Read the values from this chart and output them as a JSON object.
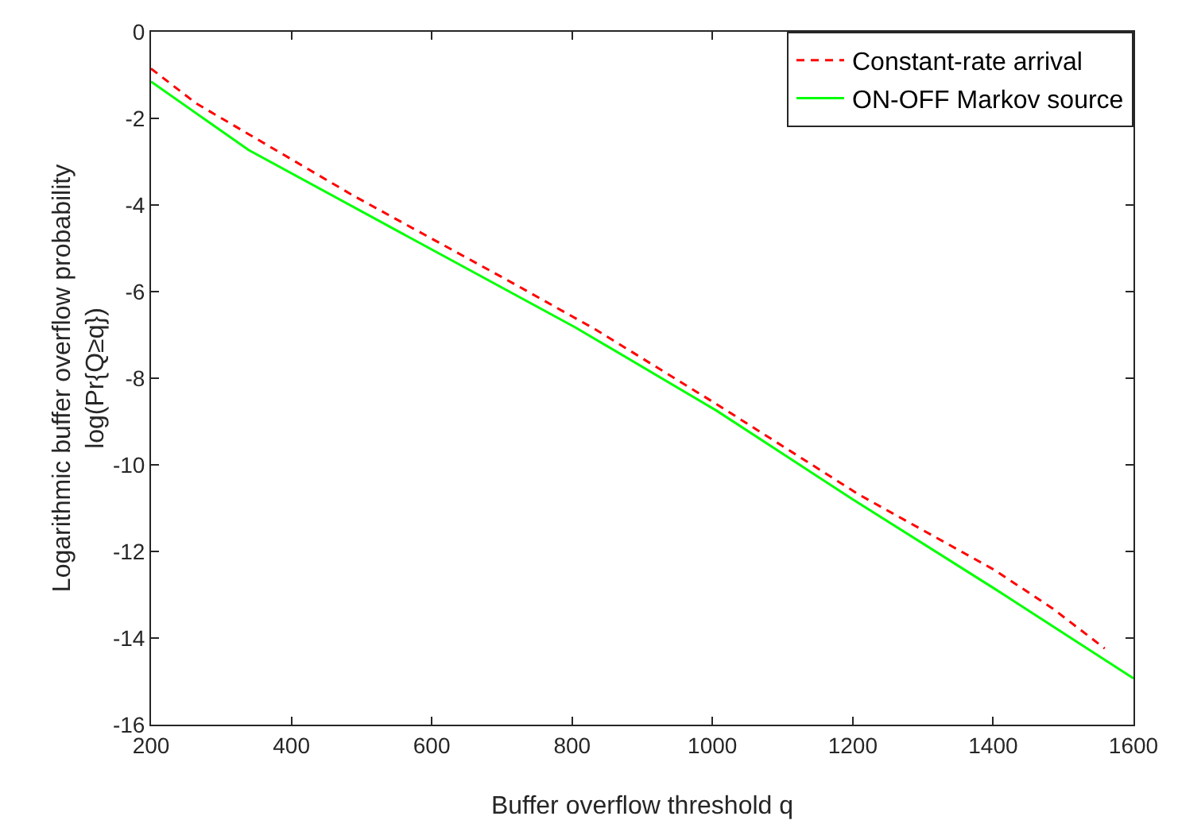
{
  "chart_data": {
    "type": "line",
    "xlabel": "Buffer overflow threshold q",
    "ylabel": "Logarithmic buffer overflow probability\nlog(Pr{Q≥q})",
    "xlim": [
      200,
      1600
    ],
    "xticks": [
      200,
      400,
      600,
      800,
      1000,
      1200,
      1400,
      1600
    ],
    "ylim": [
      -16,
      0
    ],
    "yticks": [
      -16,
      -14,
      -12,
      -10,
      -8,
      -6,
      -4,
      -2,
      0
    ],
    "grid": false,
    "legend": "top right",
    "series": [
      {
        "name": "Constant-rate arrival",
        "color": "#ff0000",
        "line_style": "dashed",
        "x": [
          200,
          264,
          489,
          714,
          834,
          1006,
          1208,
          1402,
          1485,
          1559
        ],
        "values": [
          -0.85,
          -1.65,
          -3.79,
          -5.79,
          -6.88,
          -8.6,
          -10.68,
          -12.43,
          -13.32,
          -14.24
        ]
      },
      {
        "name": "ON-OFF Markov source",
        "color": "#00ff00",
        "line_style": "solid",
        "x": [
          200,
          339,
          564,
          804,
          1006,
          1200,
          1402,
          1600
        ],
        "values": [
          -1.15,
          -2.73,
          -4.71,
          -6.82,
          -8.75,
          -10.8,
          -12.86,
          -14.93
        ]
      }
    ]
  }
}
